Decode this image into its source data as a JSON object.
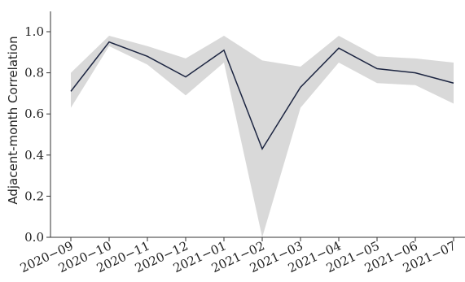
{
  "chart_data": {
    "type": "line",
    "title": "",
    "xlabel": "",
    "ylabel": "Adjacent-month Correlation",
    "categories": [
      "2020−09",
      "2020−10",
      "2020−11",
      "2020−12",
      "2021−01",
      "2021−02",
      "2021−03",
      "2021−04",
      "2021−05",
      "2021−06",
      "2021−07"
    ],
    "series": [
      {
        "values": [
          0.71,
          0.95,
          0.88,
          0.78,
          0.91,
          0.43,
          0.73,
          0.92,
          0.82,
          0.8,
          0.75
        ],
        "lower": [
          0.63,
          0.93,
          0.84,
          0.69,
          0.85,
          0.0,
          0.63,
          0.85,
          0.75,
          0.74,
          0.65
        ],
        "upper": [
          0.8,
          0.98,
          0.93,
          0.87,
          0.98,
          0.86,
          0.83,
          0.98,
          0.88,
          0.87,
          0.85
        ]
      }
    ],
    "ylim": [
      0.0,
      1.1
    ],
    "yticks": [
      "0.0",
      "0.2",
      "0.4",
      "0.6",
      "0.8",
      "1.0"
    ],
    "grid": false,
    "legend": "none",
    "colors": {
      "line": "#1c2541",
      "band": "#d9d9d9",
      "axis": "#333333"
    }
  }
}
